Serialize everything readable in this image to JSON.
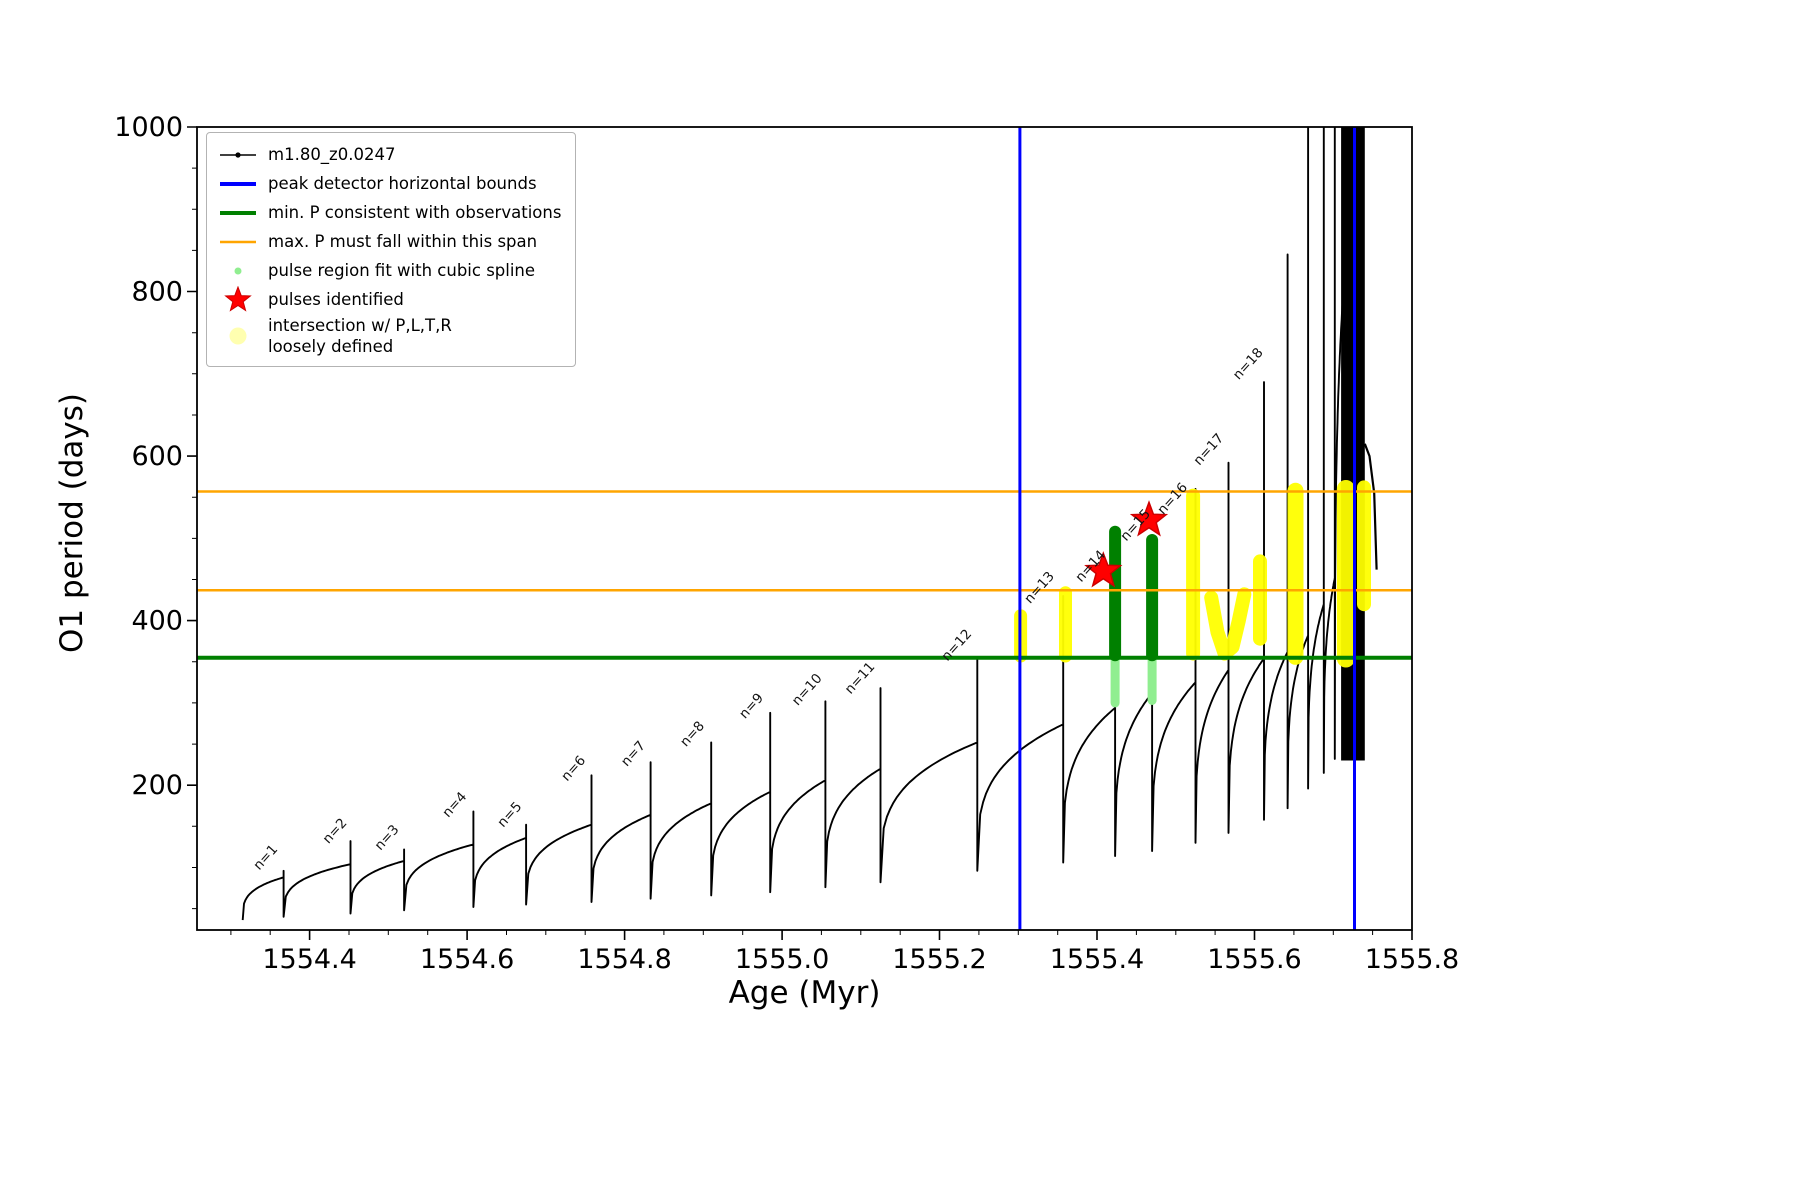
{
  "chart_data": {
    "type": "line",
    "title": "",
    "xlabel": "Age (Myr)",
    "ylabel": "O1 period (days)",
    "xlim": [
      1554.257,
      1555.8
    ],
    "ylim": [
      24,
      1000
    ],
    "xticks": [
      "1554.4",
      "1554.6",
      "1554.8",
      "1555.0",
      "1555.2",
      "1555.4",
      "1555.6",
      "1555.8"
    ],
    "xtick_values": [
      1554.4,
      1554.6,
      1554.8,
      1555.0,
      1555.2,
      1555.4,
      1555.6,
      1555.8
    ],
    "yticks": [
      "200",
      "400",
      "600",
      "800",
      "1000"
    ],
    "ytick_values": [
      200,
      400,
      600,
      800,
      1000
    ],
    "x_minor_step": 0.05,
    "y_minor_step": 50,
    "grid": false,
    "legend_position": "upper-left",
    "legend": [
      {
        "label": "m1.80_z0.0247",
        "type": "line-dot",
        "color": "#000000",
        "lw": 1.5
      },
      {
        "label": "peak detector horizontal bounds",
        "type": "line",
        "color": "#0000ff",
        "lw": 4
      },
      {
        "label": "min. P consistent with observations",
        "type": "line",
        "color": "#008000",
        "lw": 4
      },
      {
        "label": "max. P must fall within this span",
        "type": "line",
        "color": "#ffa500",
        "lw": 2.5
      },
      {
        "label": "pulse region fit with cubic spline",
        "type": "dot",
        "color": "#90ee90",
        "size": 7
      },
      {
        "label": "pulses identified",
        "type": "star",
        "color": "#ff0000",
        "size": 26
      },
      {
        "label": "intersection w/ P,L,T,R\nloosely defined",
        "type": "dot",
        "color": "#ffffb0",
        "size": 17
      }
    ],
    "annotations": {
      "blue_vlines": {
        "x": [
          1555.302,
          1555.727
        ],
        "color": "#0000ff",
        "lw": 3,
        "meaning": "peak detector horizontal bounds"
      },
      "green_hline": {
        "y": 355,
        "color": "#008000",
        "lw": 4,
        "meaning": "min. P consistent with observations"
      },
      "orange_hlines": {
        "y": [
          437,
          557
        ],
        "color": "#ffa500",
        "lw": 2.5,
        "meaning": "max. P must fall within this span"
      }
    },
    "series": {
      "name": "m1.80_z0.0247",
      "color": "#000000",
      "cycles": [
        {
          "n": 1,
          "x0": 1554.315,
          "x1": 1554.367,
          "base": 36,
          "top": 88,
          "peak": 96
        },
        {
          "n": 2,
          "x0": 1554.367,
          "x1": 1554.452,
          "base": 40,
          "top": 104,
          "peak": 132
        },
        {
          "n": 3,
          "x0": 1554.452,
          "x1": 1554.52,
          "base": 44,
          "top": 108,
          "peak": 122
        },
        {
          "n": 4,
          "x0": 1554.52,
          "x1": 1554.608,
          "base": 48,
          "top": 128,
          "peak": 168
        },
        {
          "n": 5,
          "x0": 1554.608,
          "x1": 1554.675,
          "base": 52,
          "top": 136,
          "peak": 152
        },
        {
          "n": 6,
          "x0": 1554.675,
          "x1": 1554.758,
          "base": 55,
          "top": 152,
          "peak": 212
        },
        {
          "n": 7,
          "x0": 1554.758,
          "x1": 1554.833,
          "base": 58,
          "top": 164,
          "peak": 228
        },
        {
          "n": 8,
          "x0": 1554.833,
          "x1": 1554.91,
          "base": 62,
          "top": 178,
          "peak": 252
        },
        {
          "n": 9,
          "x0": 1554.91,
          "x1": 1554.985,
          "base": 66,
          "top": 192,
          "peak": 288
        },
        {
          "n": 10,
          "x0": 1554.985,
          "x1": 1555.055,
          "base": 70,
          "top": 206,
          "peak": 302
        },
        {
          "n": 11,
          "x0": 1555.055,
          "x1": 1555.125,
          "base": 76,
          "top": 220,
          "peak": 318
        },
        {
          "n": 12,
          "x0": 1555.125,
          "x1": 1555.248,
          "base": 82,
          "top": 252,
          "peak": 355
        },
        {
          "n": 13,
          "x0": 1555.248,
          "x1": 1555.357,
          "base": 96,
          "top": 274,
          "peak": 430
        },
        {
          "n": 14,
          "x0": 1555.357,
          "x1": 1555.423,
          "base": 106,
          "top": 294,
          "peak": 510
        },
        {
          "n": 15,
          "x0": 1555.423,
          "x1": 1555.47,
          "base": 114,
          "top": 312,
          "peak": 500
        },
        {
          "n": 16,
          "x0": 1555.47,
          "x1": 1555.525,
          "base": 120,
          "top": 325,
          "peak": 560
        },
        {
          "n": 17,
          "x0": 1555.525,
          "x1": 1555.567,
          "base": 130,
          "top": 340,
          "peak": 592
        },
        {
          "n": 18,
          "x0": 1555.567,
          "x1": 1555.612,
          "base": 142,
          "top": 354,
          "peak": 690
        },
        {
          "n": null,
          "x0": 1555.612,
          "x1": 1555.642,
          "base": 158,
          "top": 362,
          "peak": 845
        },
        {
          "n": null,
          "x0": 1555.642,
          "x1": 1555.668,
          "base": 172,
          "top": 382,
          "peak": 1005
        },
        {
          "n": null,
          "x0": 1555.668,
          "x1": 1555.688,
          "base": 196,
          "top": 420,
          "peak": 1005
        },
        {
          "n": null,
          "x0": 1555.688,
          "x1": 1555.702,
          "base": 215,
          "top": 452,
          "peak": 1005
        },
        {
          "n": null,
          "x0": 1555.702,
          "x1": 1555.712,
          "base": 232,
          "top": 788,
          "peak": 1005
        }
      ],
      "cluster_spikes": {
        "base": 230,
        "peak": 1005,
        "x": [
          1555.712,
          1555.7146,
          1555.7172,
          1555.7198,
          1555.7224,
          1555.725,
          1555.7276,
          1555.7302,
          1555.7328,
          1555.7354,
          1555.738
        ]
      },
      "tail_points": [
        [
          1555.74,
          615
        ],
        [
          1555.746,
          600
        ],
        [
          1555.752,
          555
        ],
        [
          1555.755,
          462
        ]
      ]
    },
    "pulse_labels": [
      {
        "text": "n=1",
        "x": 1554.336,
        "y": 96
      },
      {
        "text": "n=2",
        "x": 1554.424,
        "y": 128
      },
      {
        "text": "n=3",
        "x": 1554.49,
        "y": 120
      },
      {
        "text": "n=4",
        "x": 1554.576,
        "y": 160
      },
      {
        "text": "n=5",
        "x": 1554.646,
        "y": 148
      },
      {
        "text": "n=6",
        "x": 1554.727,
        "y": 204
      },
      {
        "text": "n=7",
        "x": 1554.803,
        "y": 222
      },
      {
        "text": "n=8",
        "x": 1554.878,
        "y": 246
      },
      {
        "text": "n=9",
        "x": 1554.953,
        "y": 280
      },
      {
        "text": "n=10",
        "x": 1555.02,
        "y": 296
      },
      {
        "text": "n=11",
        "x": 1555.087,
        "y": 310
      },
      {
        "text": "n=12",
        "x": 1555.21,
        "y": 350
      },
      {
        "text": "n=13",
        "x": 1555.315,
        "y": 420
      },
      {
        "text": "n=14",
        "x": 1555.38,
        "y": 446
      },
      {
        "text": "n=15",
        "x": 1555.437,
        "y": 496
      },
      {
        "text": "n=16",
        "x": 1555.484,
        "y": 528
      },
      {
        "text": "n=17",
        "x": 1555.53,
        "y": 588
      },
      {
        "text": "n=18",
        "x": 1555.58,
        "y": 692
      }
    ],
    "spline_fit_regions": [
      {
        "x": 1555.423,
        "light_span": [
          300,
          358
        ],
        "dark_span": [
          358,
          508
        ],
        "light_color": "#90ee90",
        "dark_color": "#008000"
      },
      {
        "x": 1555.47,
        "light_span": [
          303,
          358
        ],
        "dark_span": [
          358,
          498
        ],
        "light_color": "#90ee90",
        "dark_color": "#008000"
      }
    ],
    "identified_pulses": [
      {
        "x": 1555.408,
        "y": 460
      },
      {
        "x": 1555.466,
        "y": 522
      }
    ],
    "intersection_regions": {
      "color": "#ffff00",
      "segments": [
        {
          "x": 1555.303,
          "y0": 357,
          "y1": 406,
          "w": 13
        },
        {
          "x": 1555.36,
          "y0": 357,
          "y1": 434,
          "w": 13
        },
        {
          "x": 1555.522,
          "y0": 360,
          "y1": 552,
          "w": 14
        },
        {
          "x": 1555.607,
          "y0": 378,
          "y1": 472,
          "w": 14
        },
        {
          "x": 1555.652,
          "y0": 356,
          "y1": 558,
          "w": 16
        },
        {
          "x": 1555.716,
          "y0": 354,
          "y1": 560,
          "w": 18
        },
        {
          "x": 1555.739,
          "y0": 420,
          "y1": 562,
          "w": 14
        }
      ],
      "arc": {
        "w": 14,
        "points": [
          [
            1555.545,
            428
          ],
          [
            1555.553,
            386
          ],
          [
            1555.562,
            360
          ],
          [
            1555.572,
            368
          ],
          [
            1555.58,
            400
          ],
          [
            1555.587,
            432
          ]
        ]
      }
    }
  }
}
